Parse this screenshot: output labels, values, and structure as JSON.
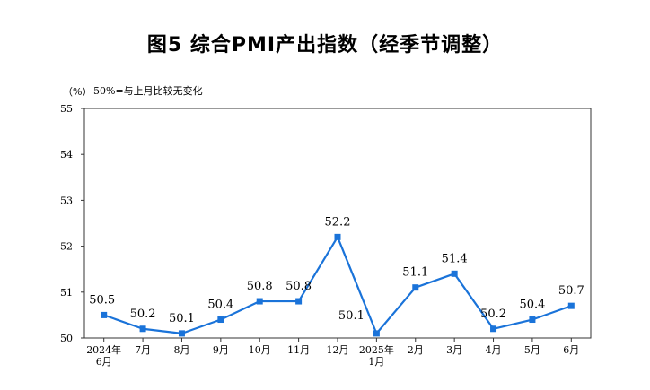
{
  "chart_data": {
    "type": "line",
    "title": "图5  综合PMI产出指数（经季节调整）",
    "y_unit": "（%）",
    "note": "50%=与上月比较无变化",
    "categories": [
      [
        "2024年",
        "6月"
      ],
      [
        "7月"
      ],
      [
        "8月"
      ],
      [
        "9月"
      ],
      [
        "10月"
      ],
      [
        "11月"
      ],
      [
        "12月"
      ],
      [
        "2025年",
        "1月"
      ],
      [
        "2月"
      ],
      [
        "3月"
      ],
      [
        "4月"
      ],
      [
        "5月"
      ],
      [
        "6月"
      ]
    ],
    "series": [
      {
        "values": [
          50.5,
          50.2,
          50.1,
          50.4,
          50.8,
          50.8,
          52.2,
          50.1,
          51.1,
          51.4,
          50.2,
          50.4,
          50.7
        ]
      }
    ],
    "data_labels": [
      "50.5",
      "50.2",
      "50.1",
      "50.4",
      "50.8",
      "50.8",
      "52.2",
      "50.1",
      "51.1",
      "51.4",
      "50.2",
      "50.4",
      "50.7"
    ],
    "ylim": [
      50,
      55
    ],
    "yticks": [
      50,
      51,
      52,
      53,
      54,
      55
    ],
    "grid": false,
    "legend": "none",
    "line_color": "#1a73d9",
    "marker": "square"
  }
}
